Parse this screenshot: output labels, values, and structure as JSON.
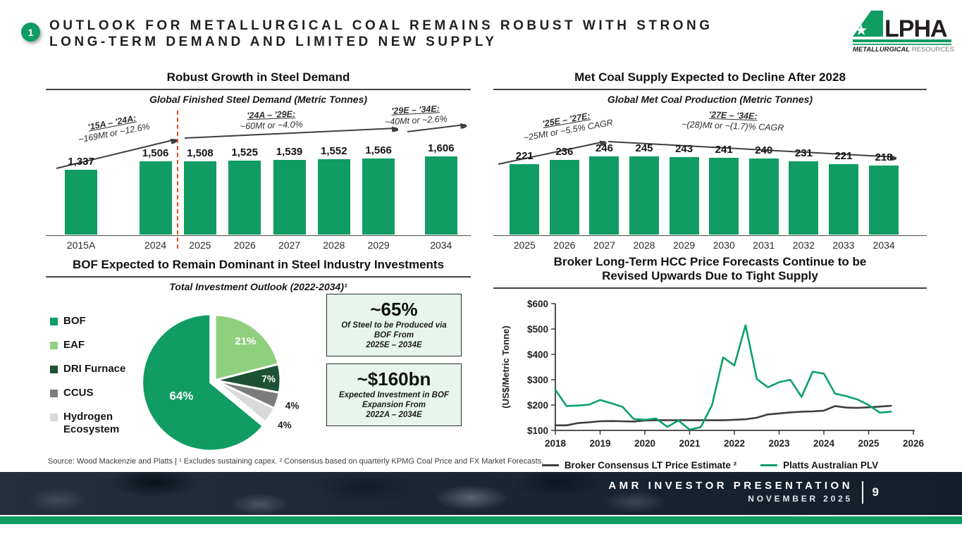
{
  "header": {
    "badge": "1",
    "title_line1": "OUTLOOK FOR METALLURGICAL COAL REMAINS ROBUST WITH STRONG",
    "title_line2": "LONG-TERM DEMAND AND LIMITED NEW SUPPLY",
    "logo": {
      "brand": "ALPHA",
      "word_rest": "LPHA",
      "tagline_bold": "METALLURGICAL",
      "tagline_light": " RESOURCES"
    }
  },
  "colors": {
    "brand_green": "#109C63",
    "light_green": "#8FD07F",
    "dark_green": "#1C5233",
    "gray": "#7C7C7C",
    "light_gray": "#D9D9D9",
    "line_dark": "#3F3F3F",
    "divider_red": "#E8501E",
    "callout_bg": "#E7F5EC",
    "footer_navy": "#1A2633"
  },
  "chart_data": [
    {
      "type": "bar",
      "section_title": "Robust Growth in Steel Demand",
      "title": "Global Finished Steel Demand (Metric Tonnes)",
      "categories": [
        "2015A",
        "2024",
        "2025",
        "2026",
        "2027",
        "2028",
        "2029",
        "2034"
      ],
      "values": [
        1337,
        1506,
        1508,
        1525,
        1539,
        1552,
        1566,
        1606
      ],
      "value_labels": [
        "1,337",
        "1,506",
        "1,508",
        "1,525",
        "1,539",
        "1,552",
        "1,566",
        "1,606"
      ],
      "bar_color": "#109C63",
      "divider_between": [
        "2024",
        "2025"
      ],
      "annotations": [
        {
          "range": "'15A – '24A:",
          "detail": "~169Mt or ~12.6%"
        },
        {
          "range": "'24A – '29E:",
          "detail": "~60Mt or ~4.0%"
        },
        {
          "range": "'29E – '34E:",
          "detail": "~40Mt or ~2.6%"
        }
      ]
    },
    {
      "type": "bar",
      "section_title": "Met Coal Supply Expected to Decline After 2028",
      "title": "Global Met Coal Production (Metric Tonnes)",
      "categories": [
        "2025",
        "2026",
        "2027",
        "2028",
        "2029",
        "2030",
        "2031",
        "2032",
        "2033",
        "2034"
      ],
      "values": [
        221,
        236,
        246,
        245,
        243,
        241,
        240,
        231,
        221,
        218
      ],
      "value_labels": [
        "221",
        "236",
        "246",
        "245",
        "243",
        "241",
        "240",
        "231",
        "221",
        "218"
      ],
      "bar_color": "#109C63",
      "annotations": [
        {
          "range": "'25E – '27E:",
          "detail": "~25Mt or ~5.5% CAGR"
        },
        {
          "range": "'27E – '34E:",
          "detail": "~(28)Mt or ~(1.7)% CAGR"
        }
      ]
    },
    {
      "type": "pie",
      "section_title": "BOF Expected to Remain Dominant in Steel Industry Investments",
      "title": "Total Investment Outlook (2022-2034)¹",
      "labels": [
        "BOF",
        "EAF",
        "DRI Furnace",
        "CCUS",
        "Hydrogen Ecosystem"
      ],
      "values": [
        64,
        21,
        7,
        4,
        4
      ],
      "slice_labels": [
        "64%",
        "21%",
        "7%",
        "4%",
        "4%"
      ],
      "colors": [
        "#109C63",
        "#8FD07F",
        "#1C5233",
        "#7C7C7C",
        "#D9D9D9"
      ],
      "legend_position": "left"
    },
    {
      "type": "line",
      "title": "Broker Long-Term HCC Price Forecasts Continue to be Revised Upwards Due to Tight Supply",
      "title_line1": "Broker Long-Term HCC Price Forecasts Continue to be",
      "title_line2": "Revised Upwards Due to Tight Supply",
      "ylabel": "(US$/Metric Tonne)",
      "yticks": [
        "$600",
        "$500",
        "$400",
        "$300",
        "$200",
        "$100"
      ],
      "ylim": [
        100,
        600
      ],
      "xticks": [
        2018,
        2019,
        2020,
        2021,
        2022,
        2023,
        2024,
        2025,
        2026
      ],
      "xlim": [
        2018,
        2026
      ],
      "grid": false,
      "legend_position": "bottom",
      "x": [
        2018,
        2018.25,
        2018.5,
        2018.75,
        2019,
        2019.25,
        2019.5,
        2019.75,
        2020,
        2020.25,
        2020.5,
        2020.75,
        2021,
        2021.25,
        2021.5,
        2021.75,
        2022,
        2022.25,
        2022.5,
        2022.75,
        2023,
        2023.25,
        2023.5,
        2023.75,
        2024,
        2024.25,
        2024.5,
        2024.75,
        2025,
        2025.25,
        2025.5
      ],
      "series": [
        {
          "name": "Broker Consensus LT Price Estimate ²",
          "color": "#3F3F3F",
          "values": [
            120,
            120,
            129,
            132,
            136,
            137,
            136,
            135,
            139,
            140,
            140,
            140,
            140,
            140,
            140,
            140,
            142,
            144,
            150,
            163,
            167,
            171,
            174,
            175,
            178,
            196,
            190,
            189,
            191,
            194,
            197
          ]
        },
        {
          "name": "Platts Australian PLV",
          "color": "#0AA268",
          "values": [
            260,
            196,
            198,
            201,
            220,
            207,
            193,
            145,
            142,
            147,
            114,
            139,
            103,
            113,
            200,
            388,
            356,
            515,
            303,
            270,
            290,
            300,
            232,
            331,
            324,
            245,
            235,
            222,
            200,
            170,
            174
          ]
        }
      ]
    }
  ],
  "callouts": [
    {
      "headline": "~65%",
      "lines": [
        "Of Steel to be Produced via",
        "BOF From",
        "2025E – 2034E"
      ]
    },
    {
      "headline": "~$160bn",
      "lines": [
        "Expected Investment in BOF",
        "Expansion From",
        "2022A – 2034E"
      ]
    }
  ],
  "source_note": "Source: Wood Mackenzie and Platts | ¹ Excludes sustaining capex. ² Consensus based on quarterly KPMG Coal Price and FX Market Forecasts.",
  "footer": {
    "presentation": "AMR INVESTOR PRESENTATION",
    "divider": "|",
    "page": "9",
    "date": "NOVEMBER 2025"
  }
}
